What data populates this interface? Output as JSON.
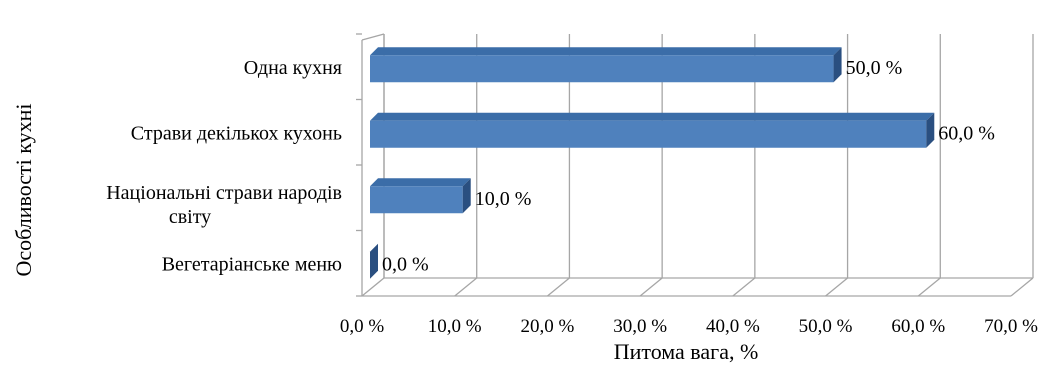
{
  "chart_data": {
    "type": "bar",
    "orientation": "horizontal",
    "style": "3d",
    "categories": [
      [
        "Одна кухня"
      ],
      [
        "Страви декількох кухонь"
      ],
      [
        "Національні  страви народів",
        "світу"
      ],
      [
        "Вегетаріанське  меню"
      ]
    ],
    "values": [
      50.0,
      60.0,
      10.0,
      0.0
    ],
    "data_labels": [
      "50,0 %",
      "60,0 %",
      "10,0 %",
      "0,0 %"
    ],
    "xlabel": "Питома вага, %",
    "ylabel": "Особливості кухні",
    "xlim": [
      0,
      70
    ],
    "x_ticks": [
      "0,0 %",
      "10,0 %",
      "20,0 %",
      "30,0 %",
      "40,0 %",
      "50,0 %",
      "60,0 %",
      "70,0 %"
    ],
    "grid": true,
    "colors": {
      "bar_front": "#4F81BD",
      "bar_top": "#3B6DA8",
      "bar_side": "#2A4F80",
      "grid": "#A6A6A6"
    }
  }
}
